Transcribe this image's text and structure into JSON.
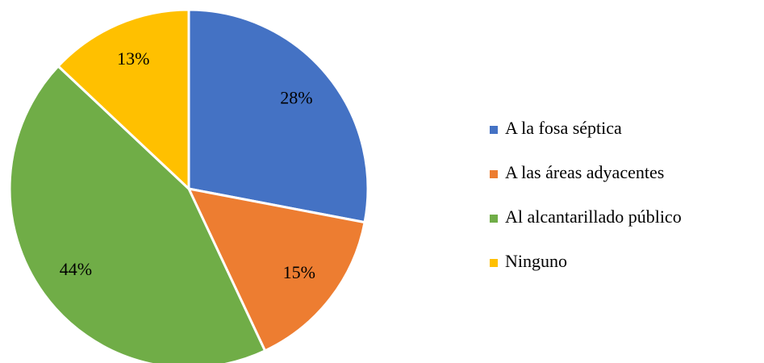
{
  "chart_data": {
    "type": "pie",
    "categories": [
      "A la fosa séptica",
      "A las áreas adyacentes",
      "Al alcantarillado público",
      "Ninguno"
    ],
    "values": [
      28,
      15,
      44,
      13
    ],
    "value_labels": [
      "28%",
      "15%",
      "44%",
      "13%"
    ],
    "colors": [
      "#4472c4",
      "#ed7d31",
      "#70ad47",
      "#ffc000"
    ],
    "legend": "right"
  }
}
